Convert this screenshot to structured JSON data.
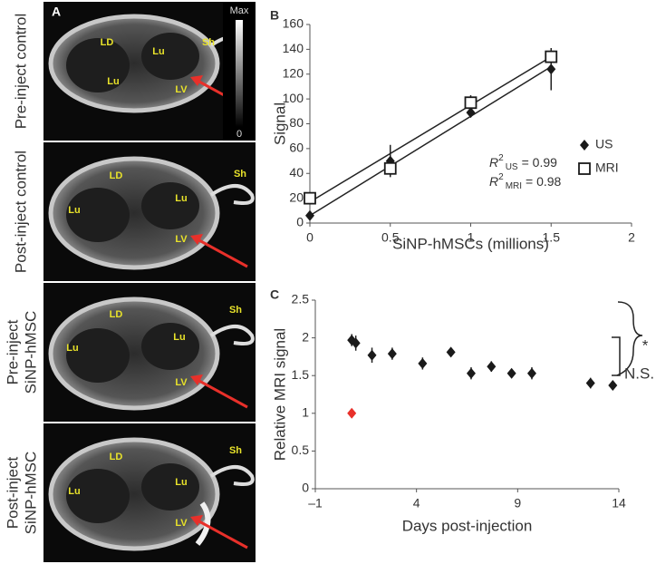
{
  "image_panel": {
    "label": "A",
    "colorbar": {
      "max": "Max",
      "min": "0"
    },
    "rows": [
      {
        "title": [
          "Pre-inject control"
        ],
        "labels": [
          "LD",
          "Lu",
          "Lu",
          "LV",
          "Sh"
        ]
      },
      {
        "title": [
          "Post-inject control"
        ],
        "labels": [
          "LD",
          "Lu",
          "Lu",
          "LV",
          "Sh"
        ]
      },
      {
        "title": [
          "Pre-inject",
          "SiNP-hMSC"
        ],
        "labels": [
          "LD",
          "Lu",
          "Lu",
          "LV",
          "Sh"
        ]
      },
      {
        "title": [
          "Post-inject",
          "SiNP-hMSC"
        ],
        "labels": [
          "LD",
          "Lu",
          "Lu",
          "LV",
          "Sh"
        ]
      }
    ]
  },
  "chart_data": [
    {
      "type": "scatter",
      "panel_label": "B",
      "xlabel": "SiNP-hMSCs (millions)",
      "ylabel": "Signal",
      "xlim": [
        0,
        2
      ],
      "xticks": [
        0,
        0.5,
        1,
        1.5,
        2
      ],
      "ylim": [
        0,
        160
      ],
      "yticks": [
        0,
        20,
        40,
        60,
        80,
        100,
        120,
        140,
        160
      ],
      "legend": "right",
      "series": [
        {
          "name": "US",
          "color": "#1a1a1a",
          "marker": "diamond",
          "x": [
            0,
            0.5,
            1,
            1.5
          ],
          "values": [
            6,
            50,
            89,
            124
          ],
          "errors": [
            2,
            13,
            3,
            17
          ],
          "fit": {
            "intercept": 6,
            "slope": 80
          }
        },
        {
          "name": "MRI",
          "color": "#1a1a1a",
          "marker": "square",
          "x": [
            0,
            0.5,
            1,
            1.5
          ],
          "values": [
            20,
            44,
            97,
            134
          ],
          "errors": [
            3,
            5,
            6,
            6
          ],
          "fit": {
            "intercept": 17,
            "slope": 78
          }
        }
      ],
      "annotations": [
        {
          "symbol": "R",
          "power": "2",
          "subscript": "US",
          "text": "= 0.99"
        },
        {
          "symbol": "R",
          "power": "2",
          "subscript": "MRI",
          "text": "= 0.98"
        }
      ]
    },
    {
      "type": "scatter",
      "panel_label": "C",
      "xlabel": "Days post-injection",
      "ylabel": "Relative MRI signal",
      "xlim": [
        -1,
        14
      ],
      "xticks": [
        {
          "value": -1,
          "label": "–1"
        },
        4,
        9,
        14
      ],
      "ylim": [
        0,
        2.5
      ],
      "yticks": [
        0,
        0.5,
        1,
        1.5,
        2,
        2.5
      ],
      "series": [
        {
          "color": "#1a1a1a",
          "marker": "diamond",
          "x": [
            0.8,
            1,
            1.8,
            2.8,
            4.3,
            5.7,
            6.7,
            7.7,
            8.7,
            9.7,
            12.6,
            13.7
          ],
          "values": [
            1.97,
            1.93,
            1.77,
            1.79,
            1.66,
            1.81,
            1.53,
            1.62,
            1.53,
            1.53,
            1.4,
            1.37
          ],
          "errors": [
            0.08,
            0.1,
            0.1,
            0.08,
            0.08,
            0.02,
            0.08,
            0.07,
            0.02,
            0.08,
            0.07,
            0.05
          ]
        },
        {
          "color": "#e8302a",
          "marker": "diamond",
          "x": [
            0.8
          ],
          "values": [
            1
          ]
        }
      ],
      "annotations": [
        {
          "text": "*"
        },
        {
          "text": "N.S."
        }
      ]
    }
  ]
}
